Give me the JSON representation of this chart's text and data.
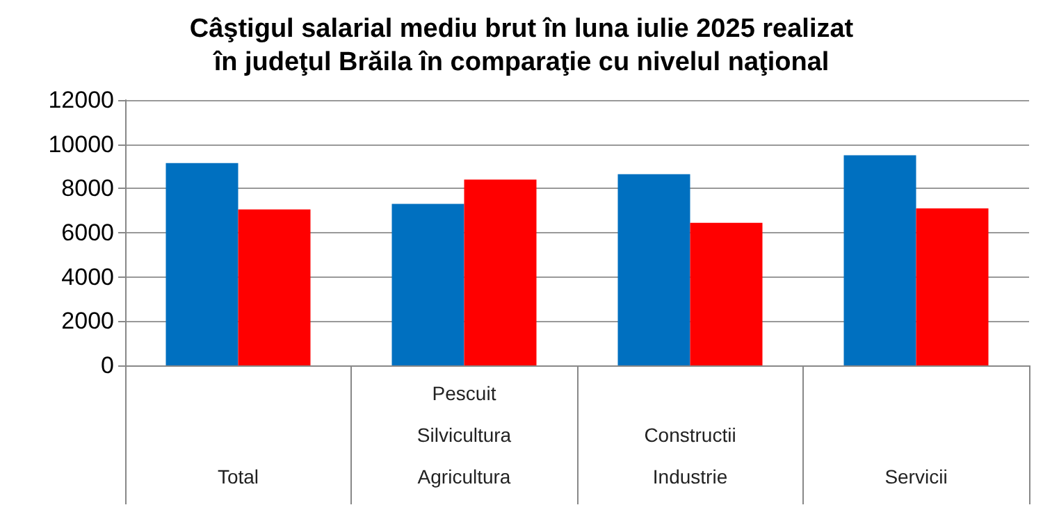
{
  "chart_data": {
    "type": "bar",
    "title": "Câştigul salarial mediu brut în luna iulie 2025 realizat\nîn judeţul Brăila în comparaţie cu nivelul naţional",
    "categories": [
      "Total",
      "Pescuit\nSilvicultura\nAgricultura",
      "Constructii\nIndustrie",
      "Servicii"
    ],
    "series": [
      {
        "color": "#0070c0",
        "values": [
          9150,
          7300,
          8650,
          9500
        ]
      },
      {
        "color": "#ff0000",
        "values": [
          7050,
          8400,
          6450,
          7100
        ]
      }
    ],
    "ylim": [
      0,
      12000
    ],
    "yticks": [
      0,
      2000,
      4000,
      6000,
      8000,
      10000,
      12000
    ],
    "grid": "y"
  }
}
